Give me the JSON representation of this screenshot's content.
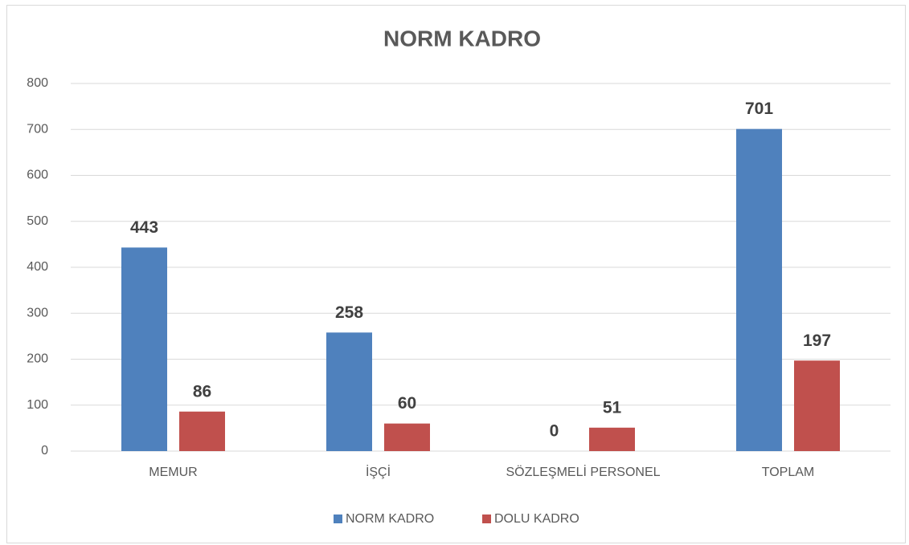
{
  "chart_data": {
    "type": "bar",
    "title": "NORM KADRO",
    "categories": [
      "MEMUR",
      "İŞÇİ",
      "SÖZLEŞMELİ PERSONEL",
      "TOPLAM"
    ],
    "series": [
      {
        "name": "NORM KADRO",
        "color": "#4f81bd",
        "values": [
          443,
          258,
          0,
          701
        ]
      },
      {
        "name": "DOLU KADRO",
        "color": "#c0504d",
        "values": [
          86,
          60,
          51,
          197
        ]
      }
    ],
    "ylim": [
      0,
      800
    ],
    "yticks": [
      0,
      100,
      200,
      300,
      400,
      500,
      600,
      700,
      800
    ],
    "grid": true,
    "legend": "bottom"
  }
}
